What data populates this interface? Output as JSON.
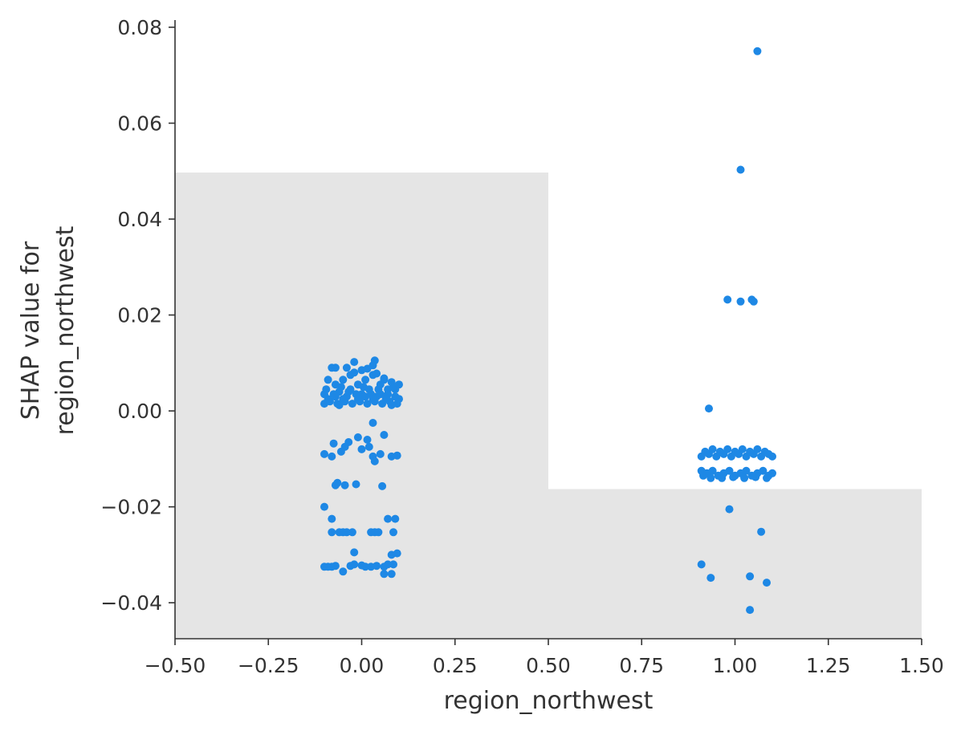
{
  "chart_data": {
    "type": "scatter",
    "xlabel": "region_northwest",
    "ylabel_lines": [
      "SHAP value for",
      "region_northwest"
    ],
    "xlim": [
      -0.5,
      1.5
    ],
    "ylim": [
      -0.0475,
      0.0815
    ],
    "x_ticks": [
      -0.5,
      -0.25,
      0.0,
      0.25,
      0.5,
      0.75,
      1.0,
      1.25,
      1.5
    ],
    "x_tick_labels": [
      "−0.50",
      "−0.25",
      "0.00",
      "0.25",
      "0.50",
      "0.75",
      "1.00",
      "1.25",
      "1.50"
    ],
    "y_ticks": [
      -0.04,
      -0.02,
      0.0,
      0.02,
      0.04,
      0.06,
      0.08
    ],
    "y_tick_labels": [
      "−0.04",
      "−0.02",
      "0.00",
      "0.02",
      "0.04",
      "0.06",
      "0.08"
    ],
    "grid": false,
    "point_color": "#1e88e5",
    "background_histogram": {
      "color": "#e5e5e5",
      "bins": [
        {
          "x0": -0.5,
          "x1": 0.5,
          "y_top": 0.0497
        },
        {
          "x0": 0.5,
          "x1": 1.5,
          "y_top": -0.0163
        }
      ]
    },
    "points": [
      {
        "x": -0.09,
        "y": 0.0065
      },
      {
        "x": -0.08,
        "y": 0.009
      },
      {
        "x": -0.07,
        "y": 0.0055
      },
      {
        "x": -0.06,
        "y": 0.004
      },
      {
        "x": -0.05,
        "y": 0.0065
      },
      {
        "x": -0.04,
        "y": 0.003
      },
      {
        "x": -0.03,
        "y": 0.0075
      },
      {
        "x": -0.02,
        "y": 0.008
      },
      {
        "x": -0.01,
        "y": 0.0055
      },
      {
        "x": 0.0,
        "y": 0.0035
      },
      {
        "x": 0.01,
        "y": 0.0065
      },
      {
        "x": 0.02,
        "y": 0.0045
      },
      {
        "x": 0.03,
        "y": 0.0075
      },
      {
        "x": 0.04,
        "y": 0.003
      },
      {
        "x": 0.05,
        "y": 0.0055
      },
      {
        "x": 0.06,
        "y": 0.0065
      },
      {
        "x": 0.07,
        "y": 0.0035
      },
      {
        "x": 0.08,
        "y": 0.006
      },
      {
        "x": 0.09,
        "y": 0.0045
      },
      {
        "x": 0.1,
        "y": 0.0025
      },
      {
        "x": -0.1,
        "y": 0.0015
      },
      {
        "x": -0.085,
        "y": 0.002
      },
      {
        "x": -0.065,
        "y": 0.0015
      },
      {
        "x": -0.045,
        "y": 0.002
      },
      {
        "x": -0.025,
        "y": 0.0015
      },
      {
        "x": -0.005,
        "y": 0.002
      },
      {
        "x": 0.015,
        "y": 0.0015
      },
      {
        "x": 0.035,
        "y": 0.002
      },
      {
        "x": 0.055,
        "y": 0.0015
      },
      {
        "x": 0.075,
        "y": 0.002
      },
      {
        "x": 0.095,
        "y": 0.0015
      },
      {
        "x": -0.095,
        "y": 0.0045
      },
      {
        "x": -0.075,
        "y": 0.0035
      },
      {
        "x": -0.055,
        "y": 0.005
      },
      {
        "x": -0.035,
        "y": 0.004
      },
      {
        "x": -0.015,
        "y": 0.0035
      },
      {
        "x": 0.005,
        "y": 0.005
      },
      {
        "x": 0.025,
        "y": 0.0035
      },
      {
        "x": 0.045,
        "y": 0.0045
      },
      {
        "x": 0.065,
        "y": 0.0025
      },
      {
        "x": 0.085,
        "y": 0.005
      },
      {
        "x": -0.09,
        "y": 0.0025
      },
      {
        "x": -0.07,
        "y": 0.003
      },
      {
        "x": -0.05,
        "y": 0.0025
      },
      {
        "x": -0.03,
        "y": 0.0045
      },
      {
        "x": -0.01,
        "y": 0.0025
      },
      {
        "x": 0.01,
        "y": 0.003
      },
      {
        "x": 0.03,
        "y": 0.0025
      },
      {
        "x": 0.05,
        "y": 0.0035
      },
      {
        "x": 0.07,
        "y": 0.0045
      },
      {
        "x": 0.09,
        "y": 0.003
      },
      {
        "x": -0.04,
        "y": 0.009
      },
      {
        "x": 0.0,
        "y": 0.0085
      },
      {
        "x": 0.03,
        "y": 0.0095
      },
      {
        "x": -0.07,
        "y": 0.009
      },
      {
        "x": 0.06,
        "y": 0.0068
      },
      {
        "x": -0.02,
        "y": 0.0102
      },
      {
        "x": 0.015,
        "y": 0.0088
      },
      {
        "x": 0.035,
        "y": 0.0105
      },
      {
        "x": 0.04,
        "y": 0.0078
      },
      {
        "x": -0.06,
        "y": 0.0012
      },
      {
        "x": 0.08,
        "y": 0.0012
      },
      {
        "x": -0.1,
        "y": 0.0035
      },
      {
        "x": 0.1,
        "y": 0.0055
      },
      {
        "x": 0.03,
        "y": -0.0025
      },
      {
        "x": -0.01,
        "y": -0.0055
      },
      {
        "x": 0.015,
        "y": -0.006
      },
      {
        "x": 0.06,
        "y": -0.005
      },
      {
        "x": -0.035,
        "y": -0.0065
      },
      {
        "x": -0.045,
        "y": -0.0075
      },
      {
        "x": -0.075,
        "y": -0.0068
      },
      {
        "x": 0.0,
        "y": -0.008
      },
      {
        "x": 0.02,
        "y": -0.0075
      },
      {
        "x": -0.055,
        "y": -0.0085
      },
      {
        "x": -0.1,
        "y": -0.009
      },
      {
        "x": -0.08,
        "y": -0.0095
      },
      {
        "x": 0.03,
        "y": -0.0095
      },
      {
        "x": 0.035,
        "y": -0.0105
      },
      {
        "x": 0.08,
        "y": -0.0095
      },
      {
        "x": 0.095,
        "y": -0.0093
      },
      {
        "x": 0.05,
        "y": -0.009
      },
      {
        "x": -0.07,
        "y": -0.0155
      },
      {
        "x": -0.065,
        "y": -0.015
      },
      {
        "x": -0.045,
        "y": -0.0155
      },
      {
        "x": -0.015,
        "y": -0.0153
      },
      {
        "x": 0.055,
        "y": -0.0157
      },
      {
        "x": -0.1,
        "y": -0.02
      },
      {
        "x": -0.08,
        "y": -0.0225
      },
      {
        "x": 0.07,
        "y": -0.0225
      },
      {
        "x": 0.09,
        "y": -0.0225
      },
      {
        "x": -0.08,
        "y": -0.0253
      },
      {
        "x": -0.06,
        "y": -0.0253
      },
      {
        "x": -0.05,
        "y": -0.0253
      },
      {
        "x": -0.04,
        "y": -0.0253
      },
      {
        "x": -0.025,
        "y": -0.0253
      },
      {
        "x": 0.025,
        "y": -0.0253
      },
      {
        "x": 0.035,
        "y": -0.0253
      },
      {
        "x": 0.045,
        "y": -0.0253
      },
      {
        "x": 0.085,
        "y": -0.0253
      },
      {
        "x": -0.02,
        "y": -0.0295
      },
      {
        "x": 0.08,
        "y": -0.03
      },
      {
        "x": 0.095,
        "y": -0.0297
      },
      {
        "x": -0.1,
        "y": -0.0325
      },
      {
        "x": -0.09,
        "y": -0.0325
      },
      {
        "x": -0.08,
        "y": -0.0325
      },
      {
        "x": -0.07,
        "y": -0.0323
      },
      {
        "x": -0.03,
        "y": -0.0323
      },
      {
        "x": -0.02,
        "y": -0.032
      },
      {
        "x": 0.0,
        "y": -0.0322
      },
      {
        "x": 0.01,
        "y": -0.0325
      },
      {
        "x": 0.025,
        "y": -0.0325
      },
      {
        "x": 0.04,
        "y": -0.0323
      },
      {
        "x": 0.06,
        "y": -0.0325
      },
      {
        "x": 0.07,
        "y": -0.032
      },
      {
        "x": 0.085,
        "y": -0.032
      },
      {
        "x": -0.05,
        "y": -0.0335
      },
      {
        "x": 0.06,
        "y": -0.034
      },
      {
        "x": 0.08,
        "y": -0.034
      },
      {
        "x": 1.06,
        "y": 0.075
      },
      {
        "x": 1.015,
        "y": 0.0503
      },
      {
        "x": 0.98,
        "y": 0.0232
      },
      {
        "x": 1.015,
        "y": 0.0228
      },
      {
        "x": 1.045,
        "y": 0.0232
      },
      {
        "x": 1.05,
        "y": 0.0228
      },
      {
        "x": 0.93,
        "y": 0.0005
      },
      {
        "x": 0.91,
        "y": -0.0095
      },
      {
        "x": 0.93,
        "y": -0.009
      },
      {
        "x": 0.95,
        "y": -0.0095
      },
      {
        "x": 0.97,
        "y": -0.009
      },
      {
        "x": 0.99,
        "y": -0.0095
      },
      {
        "x": 1.01,
        "y": -0.009
      },
      {
        "x": 1.03,
        "y": -0.0095
      },
      {
        "x": 1.05,
        "y": -0.009
      },
      {
        "x": 1.07,
        "y": -0.0095
      },
      {
        "x": 1.09,
        "y": -0.009
      },
      {
        "x": 0.92,
        "y": -0.0085
      },
      {
        "x": 0.94,
        "y": -0.008
      },
      {
        "x": 0.96,
        "y": -0.0085
      },
      {
        "x": 0.98,
        "y": -0.008
      },
      {
        "x": 1.0,
        "y": -0.0085
      },
      {
        "x": 1.02,
        "y": -0.008
      },
      {
        "x": 1.04,
        "y": -0.0085
      },
      {
        "x": 1.06,
        "y": -0.008
      },
      {
        "x": 1.08,
        "y": -0.0085
      },
      {
        "x": 1.1,
        "y": -0.0095
      },
      {
        "x": 0.91,
        "y": -0.0125
      },
      {
        "x": 0.925,
        "y": -0.013
      },
      {
        "x": 0.94,
        "y": -0.0125
      },
      {
        "x": 0.955,
        "y": -0.0135
      },
      {
        "x": 0.97,
        "y": -0.013
      },
      {
        "x": 0.985,
        "y": -0.0125
      },
      {
        "x": 1.0,
        "y": -0.0135
      },
      {
        "x": 1.015,
        "y": -0.013
      },
      {
        "x": 1.03,
        "y": -0.0125
      },
      {
        "x": 1.045,
        "y": -0.0135
      },
      {
        "x": 1.06,
        "y": -0.013
      },
      {
        "x": 1.075,
        "y": -0.0125
      },
      {
        "x": 1.09,
        "y": -0.0135
      },
      {
        "x": 1.1,
        "y": -0.013
      },
      {
        "x": 0.915,
        "y": -0.0135
      },
      {
        "x": 0.935,
        "y": -0.014
      },
      {
        "x": 0.965,
        "y": -0.014
      },
      {
        "x": 0.995,
        "y": -0.0138
      },
      {
        "x": 1.025,
        "y": -0.014
      },
      {
        "x": 1.055,
        "y": -0.0138
      },
      {
        "x": 1.085,
        "y": -0.014
      },
      {
        "x": 0.985,
        "y": -0.0205
      },
      {
        "x": 1.07,
        "y": -0.0252
      },
      {
        "x": 0.91,
        "y": -0.032
      },
      {
        "x": 0.935,
        "y": -0.0348
      },
      {
        "x": 1.04,
        "y": -0.0345
      },
      {
        "x": 1.085,
        "y": -0.0358
      },
      {
        "x": 1.04,
        "y": -0.0415
      }
    ]
  }
}
